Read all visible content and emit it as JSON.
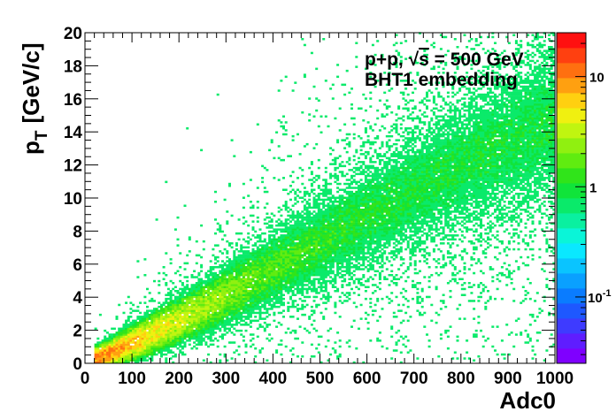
{
  "chart_data": {
    "type": "heatmap",
    "title": "",
    "xlabel": "Adc0",
    "ylabel": "p",
    "ylabel_sub": "T",
    "ylabel_unit": "[GeV/c]",
    "xlim": [
      0,
      1000
    ],
    "ylim": [
      0,
      20
    ],
    "x_ticks": [
      "0",
      "100",
      "200",
      "300",
      "400",
      "500",
      "600",
      "700",
      "800",
      "900",
      "1000"
    ],
    "y_ticks": [
      "0",
      "2",
      "4",
      "6",
      "8",
      "10",
      "12",
      "14",
      "16",
      "18",
      "20"
    ],
    "annotations": [
      {
        "pre": "p+p, ",
        "sqrt_sym": "√",
        "sqrt_arg": "s",
        "post": " = 500 GeV"
      },
      {
        "text": "BHT1 embedding"
      }
    ],
    "z_scale": "log",
    "z_range": [
      0.025,
      25
    ],
    "z_ticks": [
      {
        "exp": "-1"
      },
      {
        "label": "1"
      },
      {
        "label": "10"
      }
    ],
    "z_tick_base": "10",
    "palette": [
      "#7f00ff",
      "#5f1dff",
      "#3e3bff",
      "#1e58ff",
      "#0a7cff",
      "#0aa0ff",
      "#0ac4ff",
      "#0ae8ff",
      "#0af5d8",
      "#0af0a0",
      "#0aea6a",
      "#10e43a",
      "#30e41a",
      "#60ec10",
      "#90f010",
      "#c0f510",
      "#f0f010",
      "#ffd010",
      "#ffa010",
      "#ff7010",
      "#ff4010",
      "#ff1010"
    ],
    "distribution_peak": [
      {
        "adc": 30,
        "pt": 0.3
      },
      {
        "adc": 100,
        "pt": 1.2
      },
      {
        "adc": 200,
        "pt": 2.6
      },
      {
        "adc": 300,
        "pt": 4.1
      },
      {
        "adc": 400,
        "pt": 5.7
      },
      {
        "adc": 500,
        "pt": 7.3
      },
      {
        "adc": 600,
        "pt": 8.9
      },
      {
        "adc": 700,
        "pt": 10.5
      },
      {
        "adc": 800,
        "pt": 12.0
      },
      {
        "adc": 900,
        "pt": 13.4
      },
      {
        "adc": 1000,
        "pt": 14.7
      }
    ]
  }
}
